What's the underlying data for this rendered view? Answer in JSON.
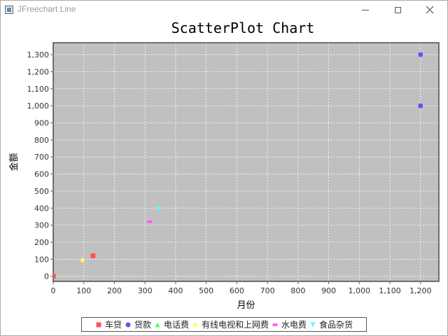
{
  "window": {
    "title": "JFreechart Line",
    "controls": {
      "minimize": "minimize",
      "maximize": "maximize",
      "close": "close"
    }
  },
  "chart_data": {
    "type": "scatter",
    "title": "ScatterPlot Chart",
    "xlabel": "月份",
    "ylabel": "金额",
    "xlim": [
      0,
      1260
    ],
    "ylim": [
      -30,
      1370
    ],
    "x_ticks": [
      0,
      100,
      200,
      300,
      400,
      500,
      600,
      700,
      800,
      900,
      1000,
      1100,
      1200
    ],
    "x_tick_labels": [
      "0",
      "100",
      "200",
      "300",
      "400",
      "500",
      "600",
      "700",
      "800",
      "900",
      "1,000",
      "1,100",
      "1,200"
    ],
    "y_ticks": [
      0,
      100,
      200,
      300,
      400,
      500,
      600,
      700,
      800,
      900,
      1000,
      1100,
      1200,
      1300
    ],
    "y_tick_labels": [
      "0",
      "100",
      "200",
      "300",
      "400",
      "500",
      "600",
      "700",
      "800",
      "900",
      "1,000",
      "1,100",
      "1,200",
      "1,300"
    ],
    "grid": true,
    "plot_background": "#c0c0c0",
    "legend_position": "bottom",
    "series": [
      {
        "name": "车贷",
        "color": "#ff5555",
        "shape": "square",
        "points": [
          [
            0,
            0
          ],
          [
            130,
            120
          ]
        ]
      },
      {
        "name": "贷款",
        "color": "#5555ff",
        "shape": "circle",
        "points": [
          [
            1200,
            1300
          ],
          [
            1200,
            1000
          ]
        ]
      },
      {
        "name": "电话费",
        "color": "#55ff55",
        "shape": "triangle-up",
        "points": []
      },
      {
        "name": "有线电视和上网费",
        "color": "#ffff55",
        "shape": "diamond",
        "points": [
          [
            95,
            95
          ]
        ]
      },
      {
        "name": "水电费",
        "color": "#ff55ff",
        "shape": "rect-h",
        "points": [
          [
            315,
            320
          ]
        ]
      },
      {
        "name": "食品杂货",
        "color": "#55ffff",
        "shape": "triangle-down",
        "points": [
          [
            345,
            395
          ]
        ]
      }
    ]
  }
}
